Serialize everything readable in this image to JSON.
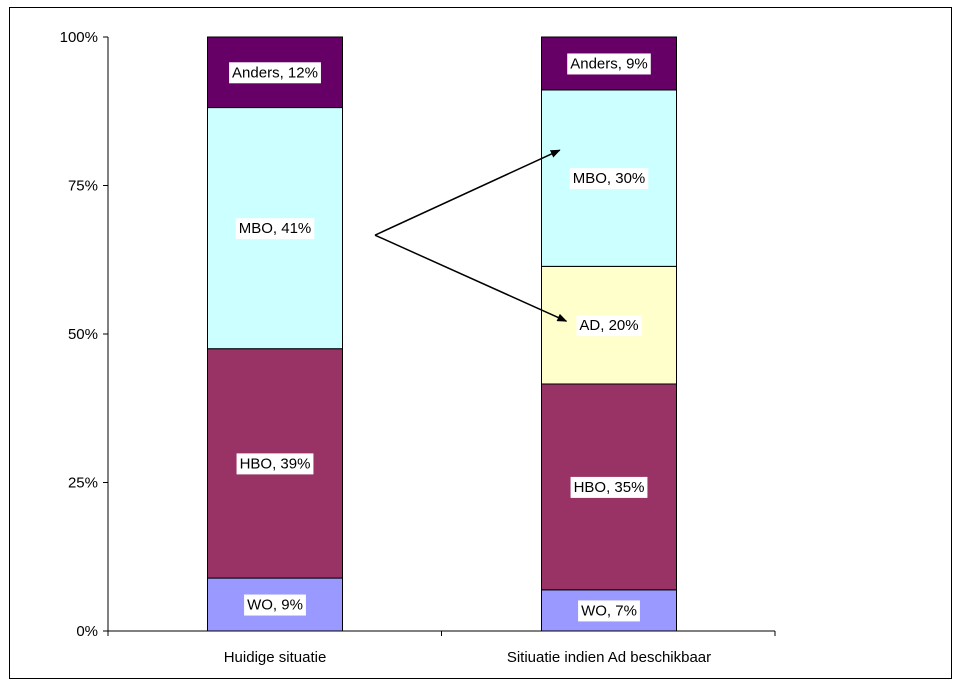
{
  "chart_data": {
    "type": "bar",
    "stacked": true,
    "percent_stacked": true,
    "categories": [
      "Huidige situatie",
      "Sitiuatie indien Ad beschikbaar"
    ],
    "series": [
      {
        "name": "WO",
        "values": [
          9,
          7
        ],
        "labels": [
          "WO, 9%",
          "WO, 7%"
        ],
        "color": "#9999ff"
      },
      {
        "name": "HBO",
        "values": [
          39,
          35
        ],
        "labels": [
          "HBO, 39%",
          "HBO, 35%"
        ],
        "color": "#993366"
      },
      {
        "name": "AD",
        "values": [
          0,
          20
        ],
        "labels": [
          "",
          "AD, 20%"
        ],
        "color": "#ffffcc"
      },
      {
        "name": "MBO",
        "values": [
          41,
          30
        ],
        "labels": [
          "MBO, 41%",
          "MBO, 30%"
        ],
        "color": "#ccffff"
      },
      {
        "name": "Anders",
        "values": [
          12,
          9
        ],
        "labels": [
          "Anders, 12%",
          "Anders, 9%"
        ],
        "color": "#660066"
      }
    ],
    "ylim": [
      0,
      100
    ],
    "yticks": [
      "0%",
      "25%",
      "50%",
      "75%",
      "100%"
    ],
    "grid": false,
    "legend": "none",
    "annotations": [
      {
        "type": "arrows",
        "from": "MBO, 41%",
        "to": [
          "MBO, 30%",
          "AD, 20%"
        ]
      }
    ]
  }
}
